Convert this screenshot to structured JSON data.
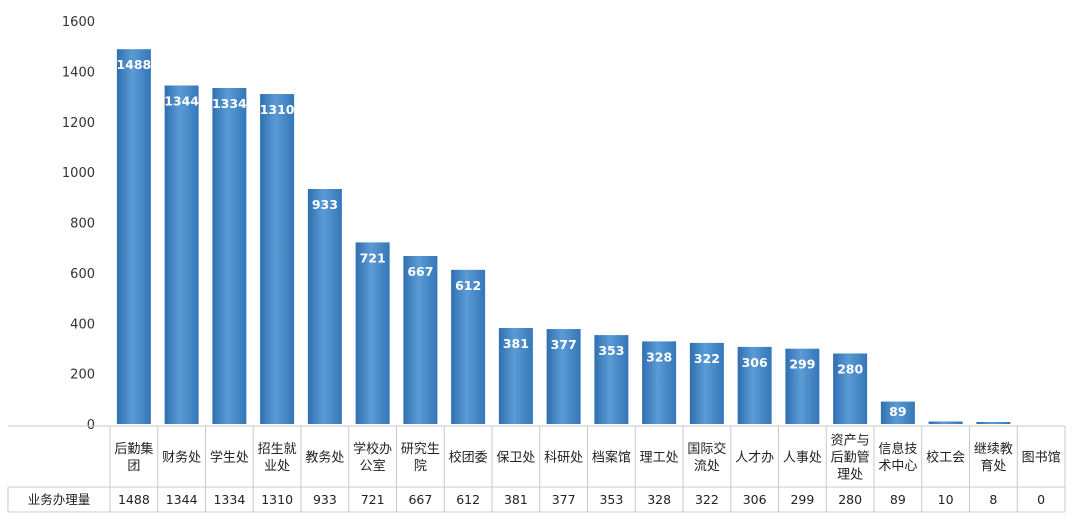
{
  "chart_data": {
    "type": "table",
    "chart_kind": "bar",
    "categories": [
      [
        "后勤集",
        "团"
      ],
      [
        "财务处"
      ],
      [
        "学生处"
      ],
      [
        "招生就",
        "业处"
      ],
      [
        "教务处"
      ],
      [
        "学校办",
        "公室"
      ],
      [
        "研究生",
        "院"
      ],
      [
        "校团委"
      ],
      [
        "保卫处"
      ],
      [
        "科研处"
      ],
      [
        "档案馆"
      ],
      [
        "理工处"
      ],
      [
        "国际交",
        "流处"
      ],
      [
        "人才办"
      ],
      [
        "人事处"
      ],
      [
        "资产与",
        "后勤管",
        "理处"
      ],
      [
        "信息技",
        "术中心"
      ],
      [
        "校工会"
      ],
      [
        "继续教",
        "育处"
      ],
      [
        "图书馆"
      ]
    ],
    "series": [
      {
        "name": "业务办理量",
        "values": [
          1488,
          1344,
          1334,
          1310,
          933,
          721,
          667,
          612,
          381,
          377,
          353,
          328,
          322,
          306,
          299,
          280,
          89,
          10,
          8,
          0
        ]
      }
    ],
    "ylim": [
      0,
      1600
    ],
    "yticks": [
      0,
      200,
      400,
      600,
      800,
      1000,
      1200,
      1400,
      1600
    ],
    "data_labels": true,
    "grid": false,
    "data_table": true,
    "colors": {
      "bar": "#3a7fc3",
      "bar_light": "#5b9bd5",
      "label": "#ffffff",
      "axis_text": "#333333",
      "table_border": "#c8c8c8"
    }
  }
}
